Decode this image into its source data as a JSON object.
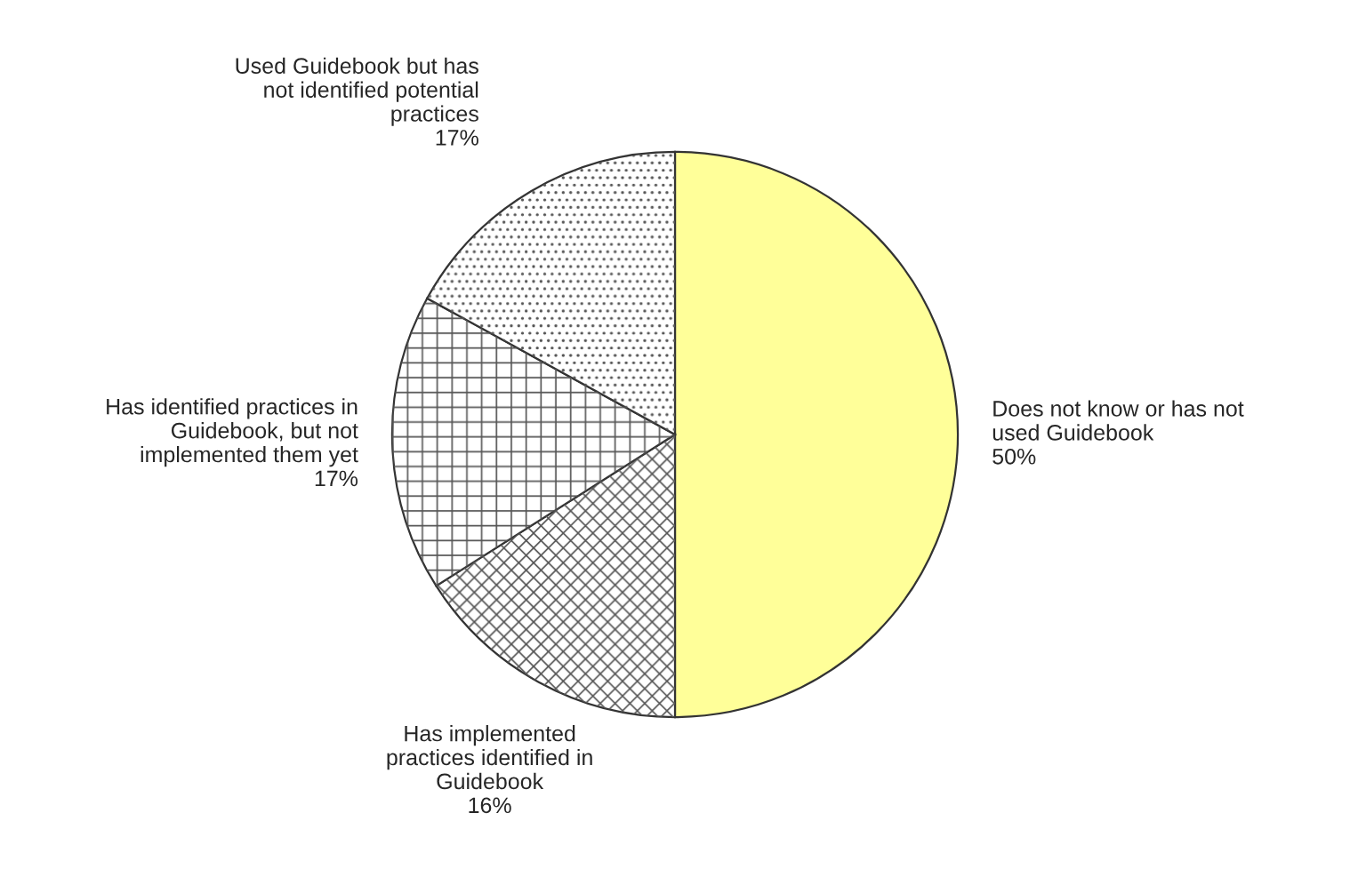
{
  "chart_data": {
    "type": "pie",
    "categories": [
      "Does not know or has not\nused Guidebook",
      "Has implemented\npractices identified in\nGuidebook",
      "Has identified practices in\nGuidebook, but not\nimplemented them yet",
      "Used Guidebook but has\nnot identified potential\npractices"
    ],
    "values": [
      50,
      16,
      17,
      17
    ],
    "colors": [
      "#ffff99",
      "#ffffff",
      "#ffffff",
      "#ffffff"
    ],
    "value_labels": [
      "50%",
      "16%",
      "17%",
      "17%"
    ]
  }
}
